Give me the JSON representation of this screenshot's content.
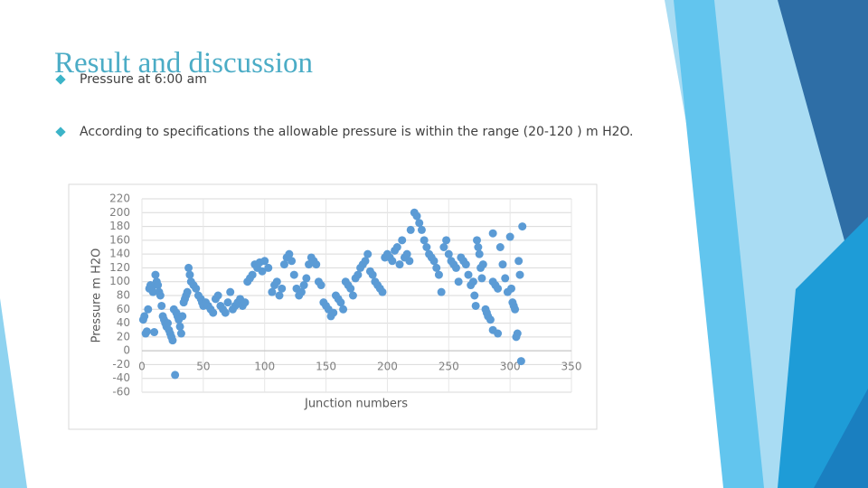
{
  "slide": {
    "title": "Result and discussion",
    "bullets": [
      "Pressure at 6:00 am",
      "According to specifications the allowable pressure is within the range (20-120 ) m H2O."
    ]
  },
  "chart_data": {
    "type": "scatter",
    "y_label": "Pressure m H2O",
    "x_label": "Junction numbers",
    "color": "#5b9bd5",
    "grid": true,
    "xlim": [
      0,
      350
    ],
    "xticks": [
      0,
      50,
      100,
      150,
      200,
      250,
      300,
      350
    ],
    "ylim": [
      -60,
      220
    ],
    "yticks": [
      -60,
      -40,
      -20,
      0,
      20,
      40,
      60,
      80,
      100,
      120,
      140,
      160,
      180,
      200,
      220
    ],
    "x": [
      1,
      2,
      3,
      4,
      5,
      6,
      7,
      8,
      9,
      10,
      11,
      12,
      13,
      14,
      15,
      16,
      17,
      18,
      19,
      20,
      21,
      22,
      23,
      24,
      25,
      26,
      27,
      28,
      29,
      30,
      31,
      32,
      33,
      34,
      35,
      36,
      37,
      38,
      39,
      40,
      42,
      44,
      46,
      48,
      49,
      50,
      52,
      54,
      56,
      58,
      60,
      62,
      64,
      66,
      68,
      70,
      72,
      74,
      76,
      78,
      80,
      82,
      84,
      86,
      88,
      90,
      92,
      94,
      96,
      98,
      100,
      103,
      106,
      108,
      110,
      112,
      114,
      116,
      118,
      120,
      122,
      124,
      126,
      128,
      130,
      132,
      134,
      136,
      138,
      140,
      142,
      144,
      146,
      148,
      150,
      152,
      154,
      156,
      158,
      160,
      162,
      164,
      166,
      168,
      170,
      172,
      174,
      176,
      178,
      180,
      182,
      184,
      186,
      188,
      190,
      192,
      194,
      196,
      198,
      200,
      202,
      204,
      206,
      208,
      210,
      212,
      214,
      216,
      218,
      219,
      222,
      224,
      226,
      228,
      230,
      232,
      234,
      236,
      238,
      240,
      242,
      244,
      246,
      248,
      250,
      252,
      254,
      256,
      258,
      260,
      262,
      264,
      266,
      268,
      270,
      271,
      272,
      273,
      274,
      275,
      276,
      277,
      278,
      280,
      281,
      282,
      284,
      286,
      290,
      286,
      288,
      290,
      286,
      292,
      294,
      296,
      298,
      300,
      301,
      302,
      303,
      304,
      305,
      306,
      307,
      308,
      309,
      310
    ],
    "values": [
      45,
      50,
      25,
      28,
      60,
      90,
      95,
      92,
      85,
      27,
      110,
      100,
      95,
      85,
      80,
      65,
      50,
      45,
      40,
      35,
      40,
      30,
      25,
      20,
      15,
      60,
      -35,
      55,
      50,
      45,
      35,
      25,
      50,
      70,
      75,
      80,
      85,
      120,
      110,
      100,
      95,
      90,
      80,
      75,
      70,
      65,
      70,
      65,
      60,
      55,
      75,
      80,
      65,
      60,
      55,
      70,
      85,
      60,
      65,
      70,
      75,
      65,
      70,
      100,
      105,
      110,
      125,
      120,
      128,
      115,
      130,
      120,
      85,
      95,
      100,
      80,
      90,
      125,
      135,
      140,
      130,
      110,
      90,
      80,
      85,
      95,
      105,
      125,
      135,
      130,
      125,
      100,
      95,
      70,
      65,
      60,
      50,
      55,
      80,
      75,
      70,
      60,
      100,
      95,
      90,
      80,
      105,
      110,
      120,
      125,
      130,
      140,
      115,
      110,
      100,
      95,
      90,
      85,
      135,
      140,
      135,
      130,
      145,
      150,
      125,
      160,
      135,
      140,
      130,
      175,
      200,
      195,
      185,
      175,
      160,
      150,
      140,
      135,
      130,
      120,
      110,
      85,
      150,
      160,
      140,
      130,
      125,
      120,
      100,
      135,
      130,
      125,
      110,
      95,
      100,
      80,
      65,
      160,
      150,
      140,
      120,
      105,
      125,
      60,
      55,
      50,
      45,
      30,
      25,
      100,
      95,
      90,
      170,
      150,
      125,
      105,
      85,
      165,
      90,
      70,
      65,
      60,
      20,
      25,
      130,
      110,
      -15,
      180
    ]
  }
}
